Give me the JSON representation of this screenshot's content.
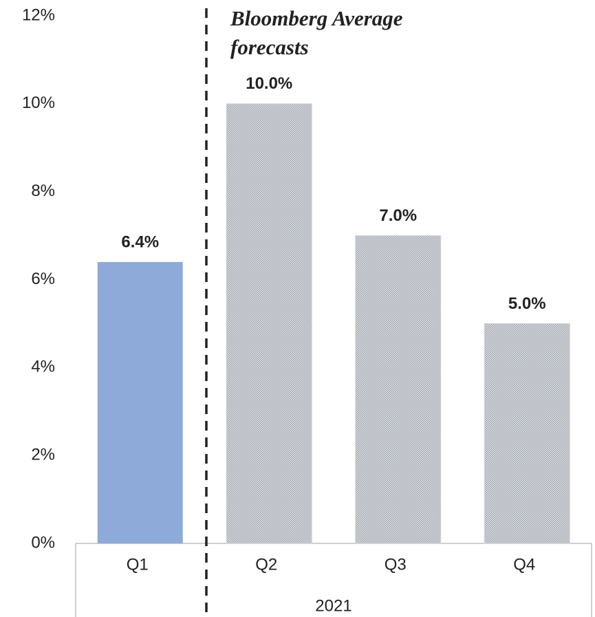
{
  "chart_data": {
    "type": "bar",
    "categories": [
      "Q1",
      "Q2",
      "Q3",
      "Q4"
    ],
    "group_label": "2021",
    "values": [
      6.4,
      10.0,
      7.0,
      5.0
    ],
    "value_labels": [
      "6.4%",
      "10.0%",
      "7.0%",
      "5.0%"
    ],
    "colors": [
      "#8eaad8",
      "#9aa0a8",
      "#9aa0a8",
      "#9aa0a8"
    ],
    "hatched": [
      false,
      true,
      true,
      true
    ],
    "annotation": [
      "Bloomberg Average",
      "forecasts"
    ],
    "ylim": [
      0,
      12
    ],
    "yticks": [
      {
        "value": 0,
        "label": "0%"
      },
      {
        "value": 2,
        "label": "2%"
      },
      {
        "value": 4,
        "label": "4%"
      },
      {
        "value": 6,
        "label": "6%"
      },
      {
        "value": 8,
        "label": "8%"
      },
      {
        "value": 10,
        "label": "10%"
      },
      {
        "value": 12,
        "label": "12%"
      }
    ],
    "grid": false
  }
}
